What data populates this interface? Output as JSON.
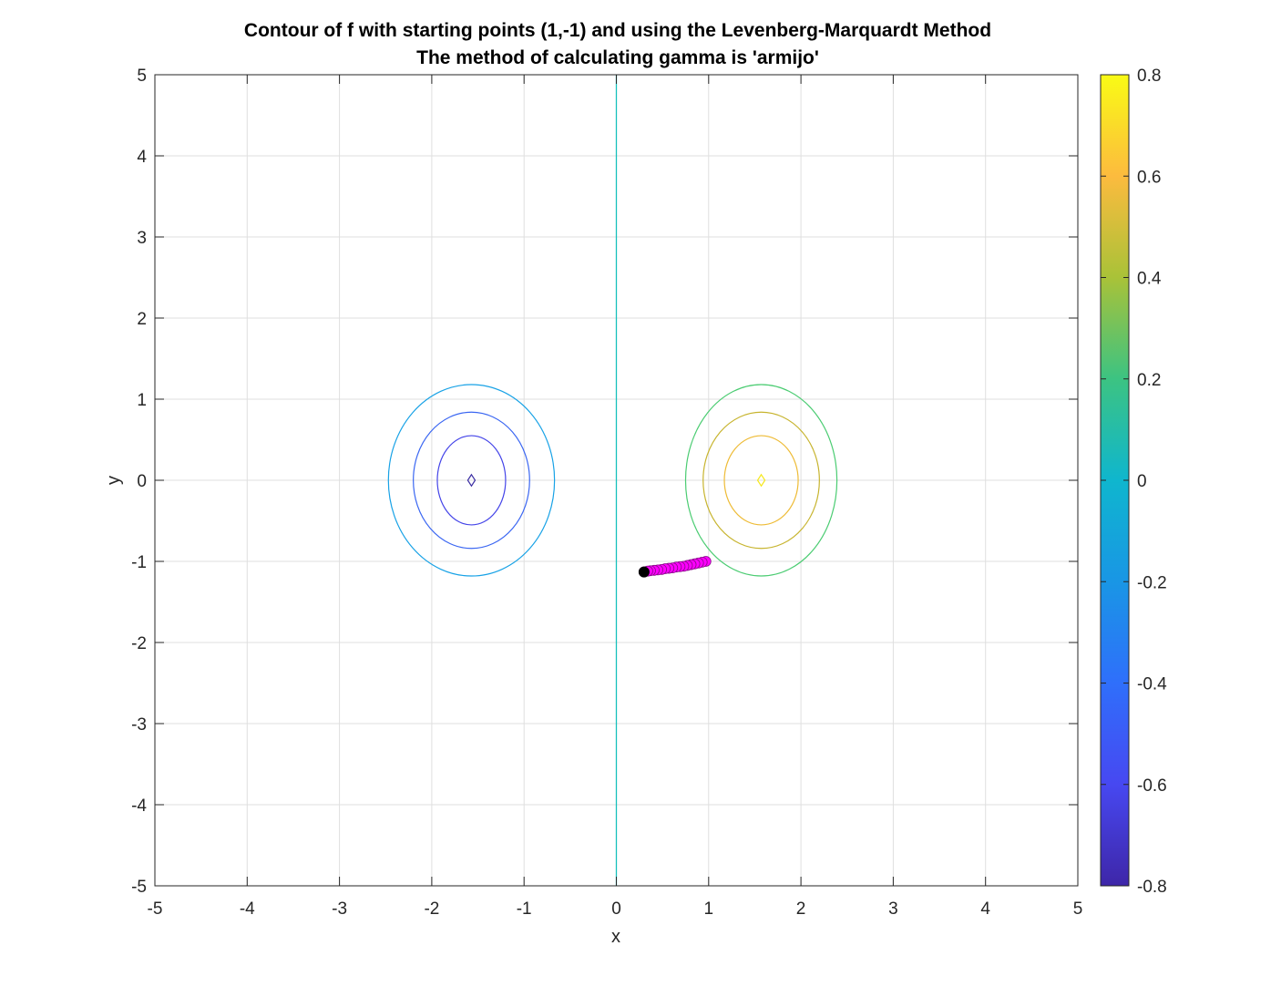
{
  "chart_data": {
    "type": "contour",
    "title": [
      "Contour of f with starting points (1,-1) and using the Levenberg-Marquardt Method",
      "The method of calculating gamma is 'armijo'"
    ],
    "xlabel": "x",
    "ylabel": "y",
    "xlim": [
      -5,
      5
    ],
    "ylim": [
      -5,
      5
    ],
    "xticks": [
      -5,
      -4,
      -3,
      -2,
      -1,
      0,
      1,
      2,
      3,
      4,
      5
    ],
    "yticks": [
      -5,
      -4,
      -3,
      -2,
      -1,
      0,
      1,
      2,
      3,
      4,
      5
    ],
    "grid": true,
    "colorbar": {
      "limits": [
        -0.8,
        0.8
      ],
      "ticks": [
        -0.8,
        -0.6,
        -0.4,
        -0.2,
        0,
        0.2,
        0.4,
        0.6,
        0.8
      ],
      "colormap": "parula"
    },
    "contour_levels": [
      {
        "level": -0.8,
        "color": "#3c2fa3",
        "centers": [
          [
            -1.57,
            0
          ]
        ],
        "rx": 0.04,
        "ry": 0.07
      },
      {
        "level": -0.6,
        "color": "#4444e8",
        "centers": [
          [
            -1.57,
            0
          ]
        ],
        "rx": 0.37,
        "ry": 0.55
      },
      {
        "level": -0.4,
        "color": "#3a66f2",
        "centers": [
          [
            -1.57,
            0
          ]
        ],
        "rx": 0.63,
        "ry": 0.84
      },
      {
        "level": -0.2,
        "color": "#18a2e6",
        "centers": [
          [
            -1.57,
            0
          ]
        ],
        "rx": 0.9,
        "ry": 1.18
      },
      {
        "level": 0,
        "color": "#16c0bc",
        "vertical_line_x": 0
      },
      {
        "level": 0.2,
        "color": "#4bcc72",
        "centers": [
          [
            1.57,
            0
          ]
        ],
        "rx": 0.82,
        "ry": 1.18
      },
      {
        "level": 0.4,
        "color": "#c7b42e",
        "centers": [
          [
            1.57,
            0
          ]
        ],
        "rx": 0.63,
        "ry": 0.84
      },
      {
        "level": 0.6,
        "color": "#eebb35",
        "centers": [
          [
            1.57,
            0
          ]
        ],
        "rx": 0.4,
        "ry": 0.55
      },
      {
        "level": 0.8,
        "color": "#f6e81e",
        "centers": [
          [
            1.57,
            0
          ]
        ],
        "rx": 0.04,
        "ry": 0.07
      }
    ],
    "path": {
      "color": "#ff00ff",
      "start": [
        1,
        -1
      ],
      "end": [
        0.3,
        -1.13
      ],
      "points": [
        [
          0.97,
          -1.0
        ],
        [
          0.93,
          -1.01
        ],
        [
          0.89,
          -1.02
        ],
        [
          0.85,
          -1.03
        ],
        [
          0.81,
          -1.04
        ],
        [
          0.77,
          -1.05
        ],
        [
          0.73,
          -1.06
        ],
        [
          0.69,
          -1.065
        ],
        [
          0.65,
          -1.07
        ],
        [
          0.61,
          -1.08
        ],
        [
          0.57,
          -1.085
        ],
        [
          0.53,
          -1.09
        ],
        [
          0.49,
          -1.1
        ],
        [
          0.45,
          -1.105
        ],
        [
          0.41,
          -1.11
        ],
        [
          0.37,
          -1.115
        ],
        [
          0.34,
          -1.12
        ],
        [
          0.3,
          -1.13
        ]
      ],
      "final_point_color": "#000000"
    }
  }
}
